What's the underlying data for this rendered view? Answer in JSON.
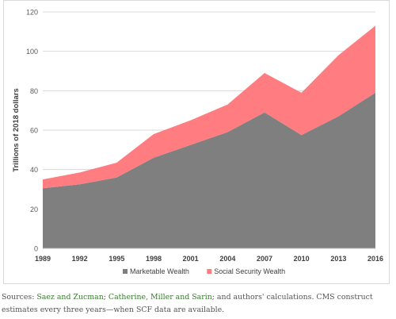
{
  "chart_data": {
    "type": "area",
    "stacked": true,
    "x": [
      "1989",
      "1992",
      "1995",
      "1998",
      "2001",
      "2004",
      "2007",
      "2010",
      "2013",
      "2016"
    ],
    "series": [
      {
        "name": "Marketable Wealth",
        "color": "#7f7f7f",
        "values": [
          30.5,
          32.5,
          36,
          46,
          52.5,
          59,
          69,
          57.5,
          67,
          79
        ]
      },
      {
        "name": "Social Security Wealth",
        "color": "#ff7c80",
        "values": [
          4.5,
          6,
          7.5,
          12,
          12.5,
          14,
          20,
          21.5,
          31,
          34
        ]
      }
    ],
    "ylabel": "Trillions of 2018 dollars",
    "ylim": [
      0,
      120
    ],
    "yticks": [
      0,
      20,
      40,
      60,
      80,
      100,
      120
    ],
    "grid": true,
    "legend_position": "bottom"
  },
  "caption": {
    "prefix": "Sources: ",
    "source1": "Saez and Zucman",
    "sep1": "; ",
    "source2": "Catherine, Miller and Sarin",
    "suffix": "; and authors' calculations. CMS construct estimates every three years—when SCF data are available."
  }
}
